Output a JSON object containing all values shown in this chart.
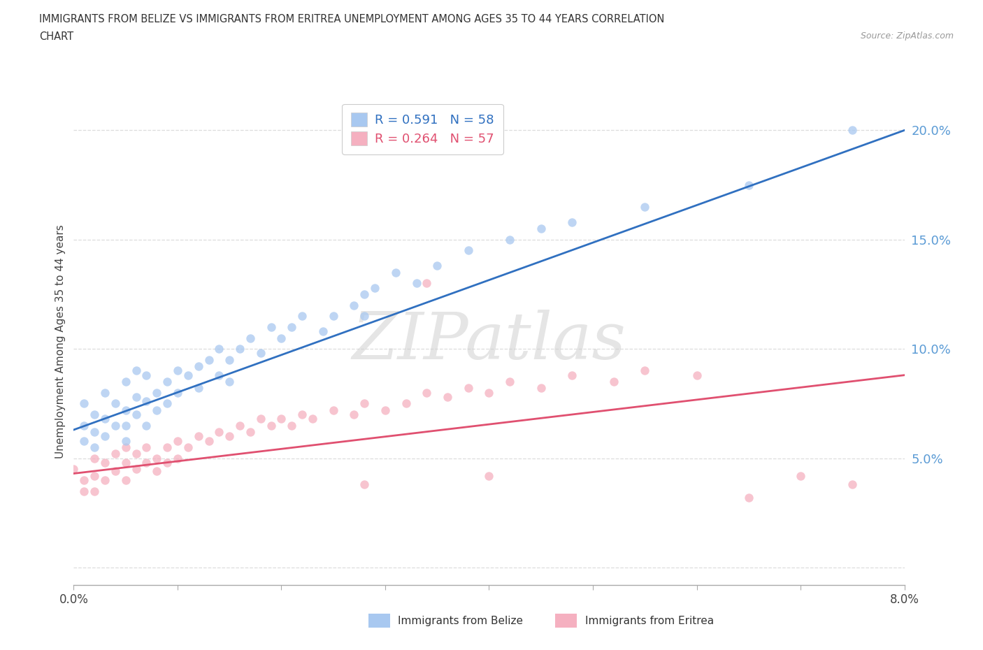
{
  "title_line1": "IMMIGRANTS FROM BELIZE VS IMMIGRANTS FROM ERITREA UNEMPLOYMENT AMONG AGES 35 TO 44 YEARS CORRELATION",
  "title_line2": "CHART",
  "source_text": "Source: ZipAtlas.com",
  "ylabel": "Unemployment Among Ages 35 to 44 years",
  "legend_belize": "Immigrants from Belize",
  "legend_eritrea": "Immigrants from Eritrea",
  "R_belize": 0.591,
  "N_belize": 58,
  "R_eritrea": 0.264,
  "N_eritrea": 57,
  "xlim": [
    0.0,
    0.08
  ],
  "ylim": [
    -0.008,
    0.215
  ],
  "xticks": [
    0.0,
    0.01,
    0.02,
    0.03,
    0.04,
    0.05,
    0.06,
    0.07,
    0.08
  ],
  "yticks": [
    0.0,
    0.05,
    0.1,
    0.15,
    0.2
  ],
  "ytick_labels": [
    "",
    "5.0%",
    "10.0%",
    "15.0%",
    "20.0%"
  ],
  "color_belize": "#a8c8f0",
  "color_eritrea": "#f5b0c0",
  "line_color_belize": "#3070c0",
  "line_color_eritrea": "#e05070",
  "grid_color": "#dddddd",
  "background_color": "#ffffff",
  "watermark": "ZIPatlas",
  "belize_x": [
    0.001,
    0.001,
    0.001,
    0.002,
    0.002,
    0.002,
    0.003,
    0.003,
    0.003,
    0.004,
    0.004,
    0.005,
    0.005,
    0.005,
    0.005,
    0.006,
    0.006,
    0.006,
    0.007,
    0.007,
    0.007,
    0.008,
    0.008,
    0.009,
    0.009,
    0.01,
    0.01,
    0.011,
    0.012,
    0.012,
    0.013,
    0.014,
    0.014,
    0.015,
    0.015,
    0.016,
    0.017,
    0.018,
    0.019,
    0.02,
    0.021,
    0.022,
    0.024,
    0.025,
    0.027,
    0.028,
    0.028,
    0.029,
    0.031,
    0.033,
    0.035,
    0.038,
    0.042,
    0.045,
    0.048,
    0.055,
    0.065,
    0.075
  ],
  "belize_y": [
    0.075,
    0.065,
    0.058,
    0.07,
    0.062,
    0.055,
    0.08,
    0.068,
    0.06,
    0.075,
    0.065,
    0.085,
    0.072,
    0.065,
    0.058,
    0.09,
    0.078,
    0.07,
    0.088,
    0.076,
    0.065,
    0.08,
    0.072,
    0.085,
    0.075,
    0.09,
    0.08,
    0.088,
    0.092,
    0.082,
    0.095,
    0.1,
    0.088,
    0.095,
    0.085,
    0.1,
    0.105,
    0.098,
    0.11,
    0.105,
    0.11,
    0.115,
    0.108,
    0.115,
    0.12,
    0.125,
    0.115,
    0.128,
    0.135,
    0.13,
    0.138,
    0.145,
    0.15,
    0.155,
    0.158,
    0.165,
    0.175,
    0.2
  ],
  "eritrea_x": [
    0.0,
    0.001,
    0.001,
    0.002,
    0.002,
    0.002,
    0.003,
    0.003,
    0.004,
    0.004,
    0.005,
    0.005,
    0.005,
    0.006,
    0.006,
    0.007,
    0.007,
    0.008,
    0.008,
    0.009,
    0.009,
    0.01,
    0.01,
    0.011,
    0.012,
    0.013,
    0.014,
    0.015,
    0.016,
    0.017,
    0.018,
    0.019,
    0.02,
    0.021,
    0.022,
    0.023,
    0.025,
    0.027,
    0.028,
    0.03,
    0.032,
    0.034,
    0.036,
    0.038,
    0.04,
    0.042,
    0.045,
    0.048,
    0.052,
    0.055,
    0.06,
    0.065,
    0.07,
    0.028,
    0.034,
    0.04,
    0.075
  ],
  "eritrea_y": [
    0.045,
    0.04,
    0.035,
    0.05,
    0.042,
    0.035,
    0.048,
    0.04,
    0.052,
    0.044,
    0.055,
    0.048,
    0.04,
    0.052,
    0.045,
    0.055,
    0.048,
    0.05,
    0.044,
    0.055,
    0.048,
    0.058,
    0.05,
    0.055,
    0.06,
    0.058,
    0.062,
    0.06,
    0.065,
    0.062,
    0.068,
    0.065,
    0.068,
    0.065,
    0.07,
    0.068,
    0.072,
    0.07,
    0.075,
    0.072,
    0.075,
    0.08,
    0.078,
    0.082,
    0.08,
    0.085,
    0.082,
    0.088,
    0.085,
    0.09,
    0.088,
    0.032,
    0.042,
    0.038,
    0.13,
    0.042,
    0.038
  ]
}
